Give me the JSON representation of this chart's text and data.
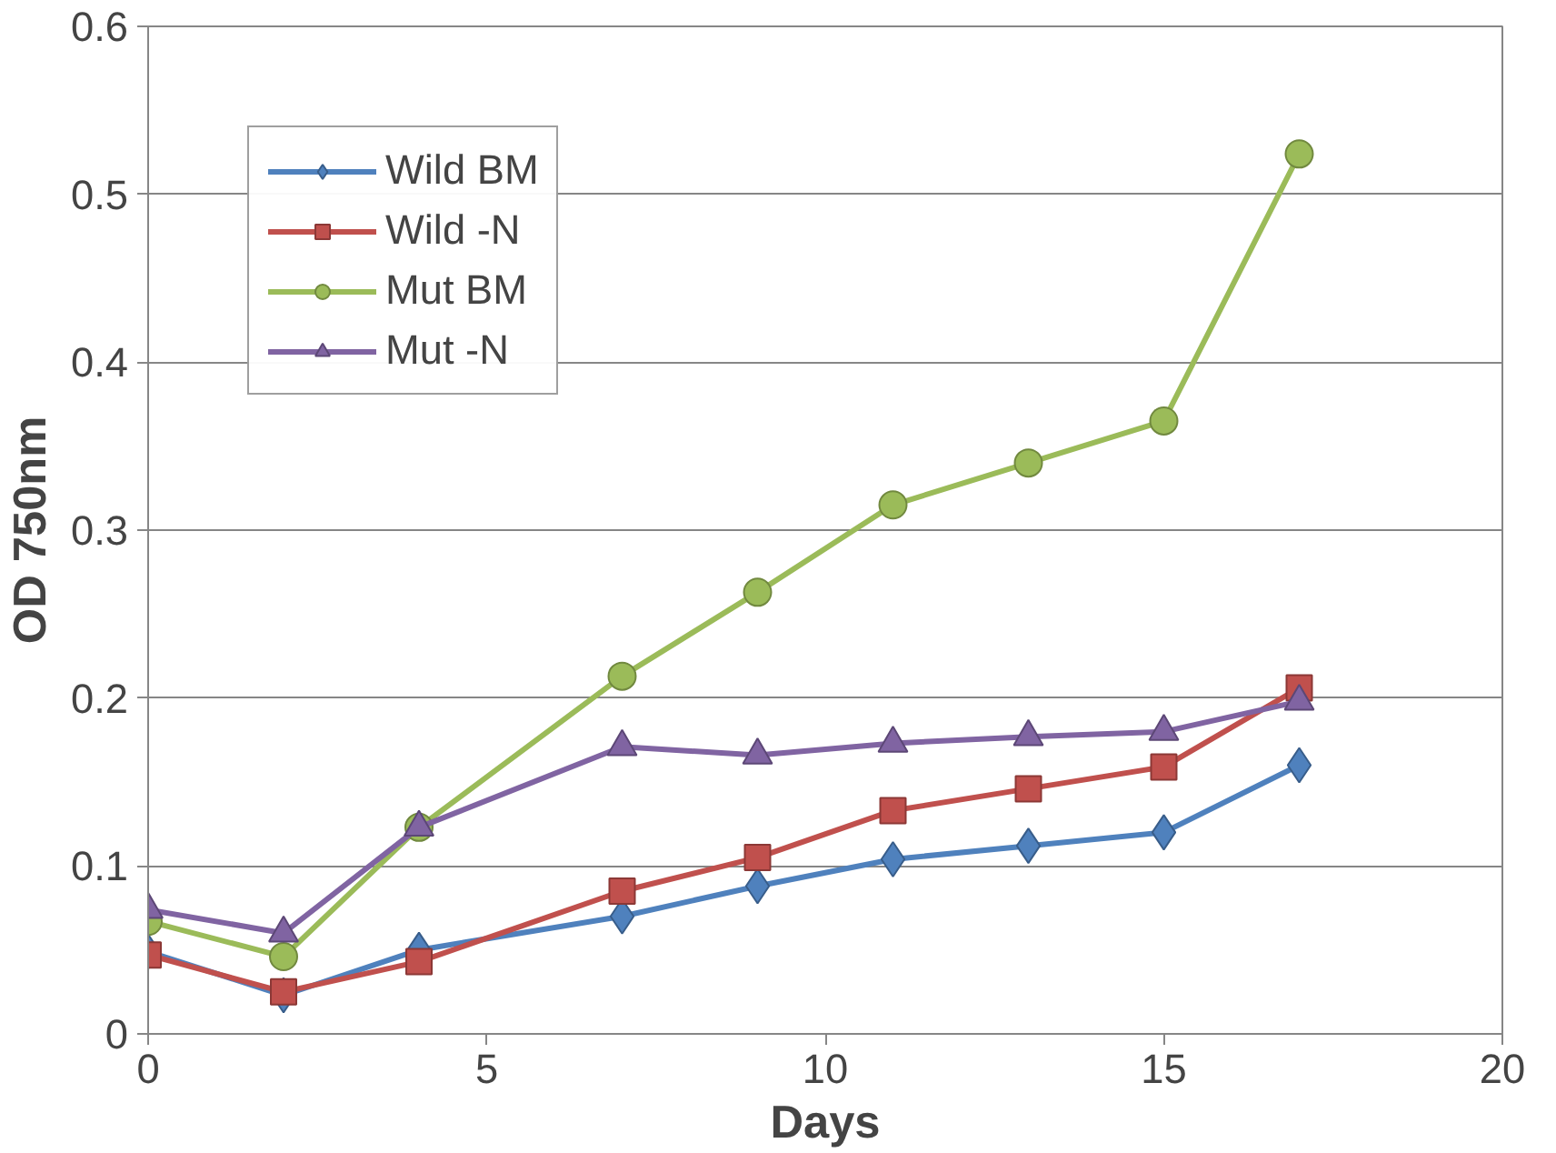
{
  "chart_data": {
    "type": "line",
    "xlabel": "Days",
    "ylabel": "OD 750nm",
    "xlim": [
      0,
      20
    ],
    "ylim": [
      0,
      0.6
    ],
    "xticks": [
      0,
      5,
      10,
      15,
      20
    ],
    "yticks": [
      0,
      0.1,
      0.2,
      0.3,
      0.4,
      0.5,
      0.6
    ],
    "grid": "y",
    "legend": "top left",
    "line_style": "solid",
    "series": [
      {
        "name": "Wild BM",
        "color": "#4f81bd",
        "marker": "diamond",
        "x": [
          0,
          2,
          4,
          7,
          9,
          11,
          13,
          15,
          17
        ],
        "values": [
          0.049,
          0.023,
          0.05,
          0.07,
          0.088,
          0.104,
          0.112,
          0.12,
          0.16
        ]
      },
      {
        "name": "Wild -N",
        "color": "#c0504d",
        "marker": "square",
        "x": [
          0,
          2,
          4,
          7,
          9,
          11,
          13,
          15,
          17
        ],
        "values": [
          0.047,
          0.025,
          0.043,
          0.085,
          0.105,
          0.133,
          0.146,
          0.159,
          0.206
        ]
      },
      {
        "name": "Mut BM",
        "color": "#9bbb59",
        "marker": "circle",
        "x": [
          0,
          2,
          4,
          7,
          9,
          11,
          13,
          15,
          17
        ],
        "values": [
          0.067,
          0.046,
          0.123,
          0.213,
          0.263,
          0.315,
          0.34,
          0.365,
          0.524
        ]
      },
      {
        "name": "Mut -N",
        "color": "#8064a2",
        "marker": "triangle",
        "x": [
          0,
          2,
          4,
          7,
          9,
          11,
          13,
          15,
          17
        ],
        "values": [
          0.074,
          0.06,
          0.123,
          0.171,
          0.166,
          0.173,
          0.177,
          0.18,
          0.198
        ]
      }
    ]
  }
}
